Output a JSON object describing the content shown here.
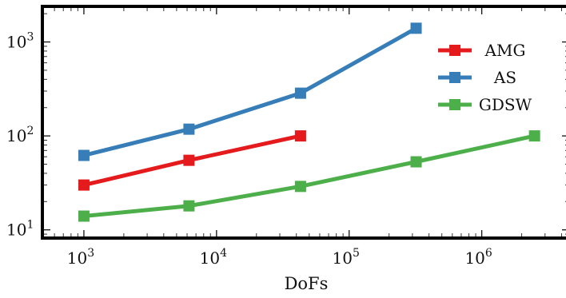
{
  "chart_data": {
    "type": "line",
    "title": "",
    "xlabel": "DoFs",
    "ylabel": "",
    "xscale": "log",
    "yscale": "log",
    "xlim": [
      500,
      4500000
    ],
    "ylim": [
      8.5,
      2300
    ],
    "grid": false,
    "legend_position": "top-right",
    "x_ticks": [
      {
        "value": 1000,
        "base": "10",
        "exp": "3"
      },
      {
        "value": 10000,
        "base": "10",
        "exp": "4"
      },
      {
        "value": 100000,
        "base": "10",
        "exp": "5"
      },
      {
        "value": 1000000,
        "base": "10",
        "exp": "6"
      }
    ],
    "y_ticks": [
      {
        "value": 10,
        "base": "10",
        "exp": "1"
      },
      {
        "value": 100,
        "base": "10",
        "exp": "2"
      },
      {
        "value": 1000,
        "base": "10",
        "exp": "3"
      }
    ],
    "series": [
      {
        "name": "AMG",
        "color": "#e41a1c",
        "x": [
          1000,
          6200,
          43000
        ],
        "y": [
          30,
          55,
          100
        ]
      },
      {
        "name": "AS",
        "color": "#377eb8",
        "x": [
          1000,
          6200,
          43000,
          320000
        ],
        "y": [
          62,
          118,
          285,
          1400
        ]
      },
      {
        "name": "GDSW",
        "color": "#4daf4a",
        "x": [
          1000,
          6200,
          43000,
          320000,
          2500000
        ],
        "y": [
          14,
          18,
          29,
          53,
          100
        ]
      }
    ]
  }
}
